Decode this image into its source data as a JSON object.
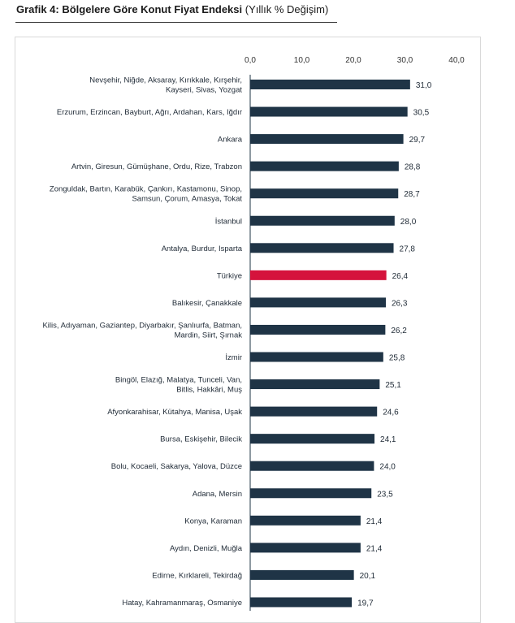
{
  "title": {
    "bold": "Grafik 4: Bölgelere Göre Konut Fiyat Endeksi",
    "normal": "(Yıllık % Değişim)"
  },
  "colors": {
    "bar": "#1f3446",
    "highlight": "#d5133c"
  },
  "chart_data": {
    "type": "bar",
    "orientation": "horizontal",
    "title": "Grafik 4: Bölgelere Göre Konut Fiyat Endeksi (Yıllık % Değişim)",
    "xlabel": "",
    "ylabel": "",
    "xlim": [
      0,
      40
    ],
    "ticks": [
      "0,0",
      "10,0",
      "20,0",
      "30,0",
      "40,0"
    ],
    "tick_values": [
      0,
      10,
      20,
      30,
      40
    ],
    "highlight": "Türkiye",
    "categories": [
      [
        "Nevşehir, Niğde, Aksaray, Kırıkkale, Kırşehir,",
        "Kayseri, Sivas, Yozgat"
      ],
      [
        "Erzurum, Erzincan, Bayburt, Ağrı, Ardahan, Kars, Iğdır"
      ],
      [
        "Ankara"
      ],
      [
        "Artvin, Giresun, Gümüşhane, Ordu, Rize, Trabzon"
      ],
      [
        "Zonguldak, Bartın, Karabük, Çankırı, Kastamonu, Sinop,",
        "Samsun, Çorum, Amasya, Tokat"
      ],
      [
        "İstanbul"
      ],
      [
        "Antalya, Burdur, Isparta"
      ],
      [
        "Türkiye"
      ],
      [
        "Balıkesir, Çanakkale"
      ],
      [
        "Kilis, Adıyaman, Gaziantep, Diyarbakır, Şanlıurfa, Batman,",
        "Mardin, Siirt, Şırnak"
      ],
      [
        "İzmir"
      ],
      [
        "Bingöl, Elazığ, Malatya, Tunceli, Van,",
        "Bitlis, Hakkâri, Muş"
      ],
      [
        "Afyonkarahisar, Kütahya, Manisa, Uşak"
      ],
      [
        "Bursa, Eskişehir, Bilecik"
      ],
      [
        "Bolu, Kocaeli, Sakarya, Yalova, Düzce"
      ],
      [
        "Adana, Mersin"
      ],
      [
        "Konya, Karaman"
      ],
      [
        "Aydın, Denizli, Muğla"
      ],
      [
        "Edirne, Kırklareli, Tekirdağ"
      ],
      [
        "Hatay, Kahramanmaraş, Osmaniye"
      ]
    ],
    "values": [
      31.0,
      30.5,
      29.7,
      28.8,
      28.7,
      28.0,
      27.8,
      26.4,
      26.3,
      26.2,
      25.8,
      25.1,
      24.6,
      24.1,
      24.0,
      23.5,
      21.4,
      21.4,
      20.1,
      19.7
    ],
    "value_labels": [
      "31,0",
      "30,5",
      "29,7",
      "28,8",
      "28,7",
      "28,0",
      "27,8",
      "26,4",
      "26,3",
      "26,2",
      "25,8",
      "25,1",
      "24,6",
      "24,1",
      "24,0",
      "23,5",
      "21,4",
      "21,4",
      "20,1",
      "19,7"
    ]
  }
}
